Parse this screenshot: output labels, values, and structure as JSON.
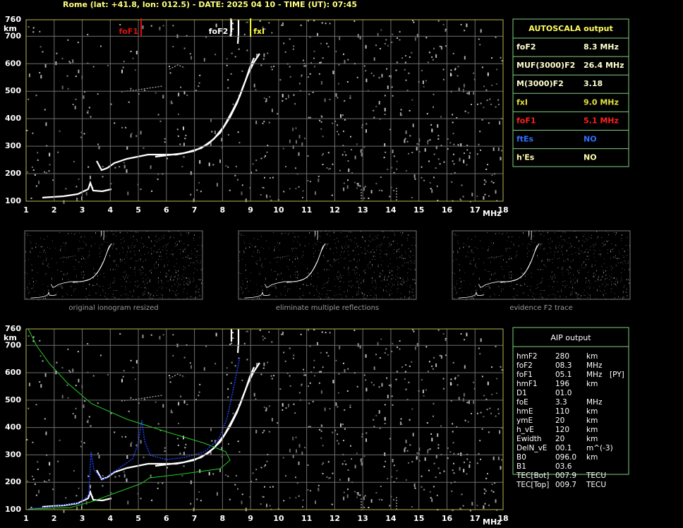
{
  "header": "Rome (lat: +41.8, lon: 012.5) - DATE: 2025 04 10 - TIME (UT): 07:45",
  "plot": {
    "y_unit": "km",
    "x_unit": "MHz",
    "xlim": [
      1,
      18
    ],
    "ylim": [
      100,
      760
    ],
    "xticks": [
      1,
      2,
      3,
      4,
      5,
      6,
      7,
      8,
      9,
      10,
      11,
      12,
      13,
      14,
      15,
      16,
      17,
      18
    ],
    "yticks": [
      100,
      200,
      300,
      400,
      500,
      600,
      700,
      760
    ],
    "markers": [
      {
        "label": "foF1",
        "value": 5.1,
        "color": "#e01010"
      },
      {
        "label": "foF2",
        "value": 8.3,
        "color": "#ffffff"
      },
      {
        "label": "fxI",
        "value": 9.0,
        "color": "#ffff40"
      }
    ]
  },
  "autoscala": {
    "title": "AUTOSCALA output",
    "rows": [
      {
        "name": "foF2",
        "value": "8.3 MHz",
        "color": "#ffffd0"
      },
      {
        "name": "MUF(3000)F2",
        "value": "26.4 MHz",
        "color": "#ffffd0"
      },
      {
        "name": "M(3000)F2",
        "value": "3.18",
        "color": "#ffffd0"
      },
      {
        "name": "fxI",
        "value": "9.0 MHz",
        "color": "#e0e040"
      },
      {
        "name": "foF1",
        "value": "5.1 MHz",
        "color": "#ff2020"
      },
      {
        "name": "ftEs",
        "value": "NO",
        "color": "#3070ff"
      },
      {
        "name": "h'Es",
        "value": "NO",
        "color": "#ffffb0"
      }
    ]
  },
  "thumbnails": [
    "original ionogram resized",
    "eliminate multiple reflections",
    "evidence F2 trace"
  ],
  "aip": {
    "title": "AIP output",
    "rows": [
      [
        "hmF2",
        "280",
        "km"
      ],
      [
        "foF2",
        "08.3",
        "MHz"
      ],
      [
        "foF1",
        "05.1",
        "MHz",
        "[PY]"
      ],
      [
        "hmF1",
        "196",
        "km"
      ],
      [
        "D1",
        "01.0"
      ],
      [
        "foE",
        "3.3",
        "MHz"
      ],
      [
        "hmE",
        "110",
        "km"
      ],
      [
        "ymE",
        "20",
        "km"
      ],
      [
        "h_vE",
        "120",
        "km"
      ],
      [
        "Ewidth",
        "20",
        "km"
      ],
      [
        "DelN_vE",
        "00.1",
        "m^(-3)"
      ],
      [
        "B0",
        "096.0",
        "km"
      ],
      [
        "B1",
        "03.6"
      ],
      [
        "TEC[Bot]",
        "007.9",
        "TECU"
      ],
      [
        "TEC[Top]",
        "009.7",
        "TECU"
      ]
    ]
  }
}
